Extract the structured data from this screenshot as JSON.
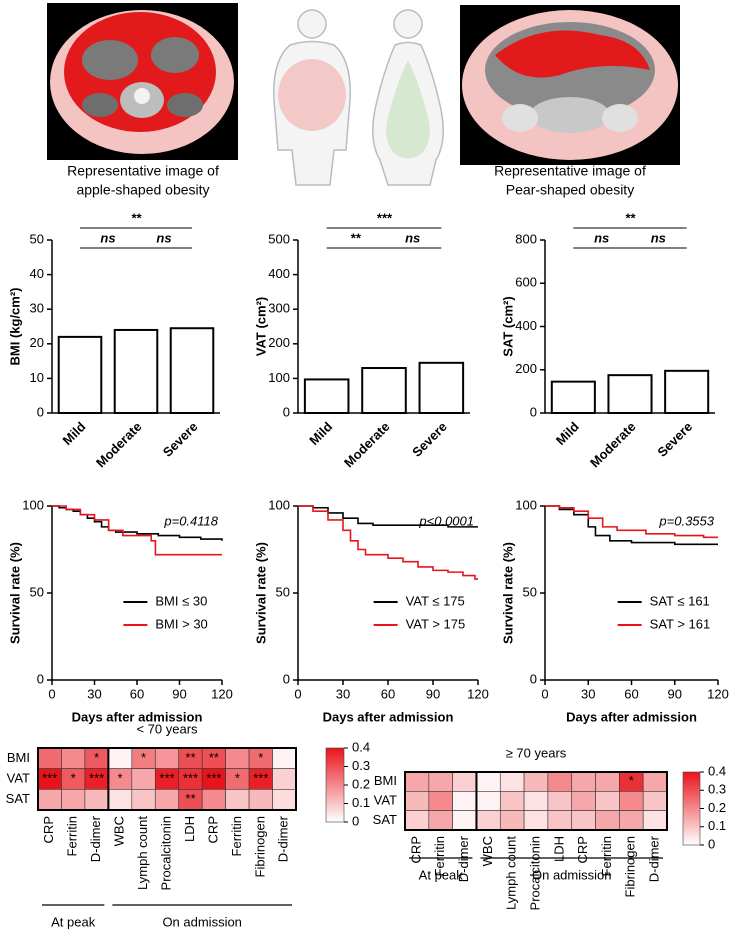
{
  "figure_images": {
    "captions": [
      [
        "Representative image of",
        "apple-shaped obesity"
      ],
      [
        "Representative image of",
        "Pear-shaped obesity"
      ]
    ]
  },
  "chart_data": [
    {
      "type": "bar",
      "ylabel": "BMI (kg/cm²)",
      "categories": [
        "Mild",
        "Moderate",
        "Severe"
      ],
      "values": [
        22,
        24,
        24.5
      ],
      "color": "#ffffff",
      "ylim": [
        0,
        50
      ],
      "yticks": [
        0,
        10,
        20,
        30,
        40,
        50
      ],
      "annotations": [
        {
          "text": "**",
          "categories": [
            "Mild",
            "Severe"
          ]
        },
        {
          "text": "ns",
          "categories": [
            "Mild",
            "Moderate"
          ]
        },
        {
          "text": "ns",
          "categories": [
            "Moderate",
            "Severe"
          ]
        }
      ]
    },
    {
      "type": "bar",
      "ylabel": "VAT (cm²)",
      "categories": [
        "Mild",
        "Moderate",
        "Severe"
      ],
      "values": [
        97,
        130,
        145
      ],
      "color": "#ffffff",
      "ylim": [
        0,
        500
      ],
      "yticks": [
        0,
        100,
        200,
        300,
        400,
        500
      ],
      "annotations": [
        {
          "text": "***",
          "categories": [
            "Mild",
            "Severe"
          ]
        },
        {
          "text": "**",
          "categories": [
            "Mild",
            "Moderate"
          ]
        },
        {
          "text": "ns",
          "categories": [
            "Moderate",
            "Severe"
          ]
        }
      ]
    },
    {
      "type": "bar",
      "ylabel": "SAT (cm²)",
      "categories": [
        "Mild",
        "Moderate",
        "Severe"
      ],
      "values": [
        145,
        175,
        195
      ],
      "color": "#ffffff",
      "ylim": [
        0,
        800
      ],
      "yticks": [
        0,
        200,
        400,
        600,
        800
      ],
      "annotations": [
        {
          "text": "**",
          "categories": [
            "Mild",
            "Severe"
          ]
        },
        {
          "text": "ns",
          "categories": [
            "Mild",
            "Moderate"
          ]
        },
        {
          "text": "ns",
          "categories": [
            "Moderate",
            "Severe"
          ]
        }
      ]
    },
    {
      "type": "line",
      "step": true,
      "xlabel": "Days after admission",
      "ylabel": "Survival rate (%)",
      "annotation": "p=0.4118",
      "xlim": [
        0,
        120
      ],
      "xticks": [
        0,
        30,
        60,
        90,
        120
      ],
      "ylim": [
        0,
        100
      ],
      "yticks": [
        0,
        50,
        100
      ],
      "legend": "lower right",
      "series": [
        {
          "name": "BMI ≤ 30",
          "color": "#000000",
          "x": [
            0,
            5,
            10,
            15,
            20,
            25,
            30,
            35,
            40,
            45,
            60,
            75,
            90,
            105,
            120
          ],
          "values": [
            100,
            99,
            98,
            97,
            95,
            93,
            91,
            88,
            86,
            85,
            84,
            83,
            82,
            81,
            80
          ]
        },
        {
          "name": "BMI > 30",
          "color": "#e8141c",
          "x": [
            0,
            10,
            20,
            30,
            40,
            50,
            70,
            73,
            120
          ],
          "values": [
            100,
            98,
            95,
            92,
            86,
            83,
            80,
            72,
            72
          ]
        }
      ]
    },
    {
      "type": "line",
      "step": true,
      "xlabel": "Days after admission",
      "ylabel": "Survival rate (%)",
      "annotation": "p<0.0001",
      "xlim": [
        0,
        120
      ],
      "xticks": [
        0,
        30,
        60,
        90,
        120
      ],
      "ylim": [
        0,
        100
      ],
      "yticks": [
        0,
        50,
        100
      ],
      "legend": "lower right",
      "series": [
        {
          "name": "VAT ≤ 175",
          "color": "#000000",
          "x": [
            0,
            10,
            20,
            30,
            40,
            50,
            80,
            100,
            120
          ],
          "values": [
            100,
            99,
            96,
            93,
            90,
            89,
            89,
            88,
            88
          ]
        },
        {
          "name": "VAT > 175",
          "color": "#e8141c",
          "x": [
            0,
            10,
            20,
            30,
            35,
            40,
            45,
            60,
            70,
            80,
            90,
            100,
            110,
            118,
            120
          ],
          "values": [
            100,
            97,
            92,
            86,
            80,
            75,
            72,
            70,
            68,
            65,
            63,
            62,
            60,
            58,
            58
          ]
        }
      ]
    },
    {
      "type": "line",
      "step": true,
      "xlabel": "Days after admission",
      "ylabel": "Survival rate (%)",
      "annotation": "p=0.3553",
      "xlim": [
        0,
        120
      ],
      "xticks": [
        0,
        30,
        60,
        90,
        120
      ],
      "ylim": [
        0,
        100
      ],
      "yticks": [
        0,
        50,
        100
      ],
      "legend": "lower right",
      "series": [
        {
          "name": "SAT ≤ 161",
          "color": "#000000",
          "x": [
            0,
            10,
            20,
            30,
            35,
            45,
            60,
            90,
            120
          ],
          "values": [
            100,
            98,
            95,
            88,
            83,
            80,
            79,
            78,
            78
          ]
        },
        {
          "name": "SAT > 161",
          "color": "#e8141c",
          "x": [
            0,
            10,
            20,
            30,
            40,
            50,
            70,
            90,
            110,
            120
          ],
          "values": [
            100,
            99,
            97,
            93,
            88,
            86,
            84,
            83,
            82,
            82
          ]
        }
      ]
    },
    {
      "type": "heatmap",
      "title": "< 70 years",
      "rows": [
        "BMI",
        "VAT",
        "SAT"
      ],
      "columns": [
        "CRP",
        "Ferritin",
        "D-dimer",
        "WBC",
        "Lymph count",
        "Procalcitonin",
        "LDH",
        "CRP",
        "Ferritin",
        "Fibrinogen",
        "D-dimer"
      ],
      "column_groups": [
        {
          "label": "At peak",
          "columns": [
            "CRP",
            "Ferritin",
            "D-dimer"
          ]
        },
        {
          "label": "On admission",
          "columns": [
            "WBC",
            "Lymph count",
            "Procalcitonin",
            "LDH",
            "CRP",
            "Ferritin",
            "Fibrinogen",
            "D-dimer"
          ]
        }
      ],
      "values": [
        [
          0.25,
          0.2,
          0.28,
          0.02,
          0.22,
          0.18,
          0.3,
          0.3,
          0.2,
          0.25,
          0.02
        ],
        [
          0.4,
          0.28,
          0.38,
          0.2,
          0.15,
          0.38,
          0.35,
          0.4,
          0.25,
          0.38,
          0.08
        ],
        [
          0.15,
          0.15,
          0.12,
          0.05,
          0.1,
          0.15,
          0.3,
          0.2,
          0.1,
          0.12,
          0.06
        ]
      ],
      "cell_labels": [
        [
          null,
          null,
          "*",
          null,
          "*",
          null,
          "**",
          "**",
          null,
          "*",
          null
        ],
        [
          "***",
          "*",
          "***",
          "*",
          null,
          "***",
          "***",
          "***",
          "*",
          "***",
          null
        ],
        [
          null,
          null,
          null,
          null,
          null,
          null,
          "**",
          null,
          null,
          null,
          null
        ]
      ],
      "colors": [
        "#ffffff",
        "#e8141c"
      ],
      "zlim": [
        0,
        0.4
      ],
      "zticks": [
        0,
        0.1,
        0.2,
        0.3,
        0.4
      ]
    },
    {
      "type": "heatmap",
      "title": "≥ 70 years",
      "rows": [
        "BMI",
        "VAT",
        "SAT"
      ],
      "columns": [
        "CRP",
        "Ferritin",
        "D-dimer",
        "WBC",
        "Lymph count",
        "Procalcitonin",
        "LDH",
        "CRP",
        "Ferritin",
        "Fibrinogen",
        "D-dimer"
      ],
      "column_groups": [
        {
          "label": "At peak",
          "columns": [
            "CRP",
            "Ferritin",
            "D-dimer"
          ]
        },
        {
          "label": "On admission",
          "columns": [
            "WBC",
            "Lymph count",
            "Procalcitonin",
            "LDH",
            "CRP",
            "Ferritin",
            "Fibrinogen",
            "D-dimer"
          ]
        }
      ],
      "values": [
        [
          0.15,
          0.15,
          0.08,
          0.02,
          0.05,
          0.12,
          0.2,
          0.15,
          0.15,
          0.35,
          0.15
        ],
        [
          0.12,
          0.2,
          0.02,
          0.02,
          0.1,
          0.05,
          0.1,
          0.15,
          0.1,
          0.2,
          0.1
        ],
        [
          0.08,
          0.15,
          0.02,
          0.08,
          0.12,
          0.05,
          0.1,
          0.1,
          0.15,
          0.15,
          0.05
        ]
      ],
      "cell_labels": [
        [
          null,
          null,
          null,
          null,
          null,
          null,
          null,
          null,
          null,
          "*",
          null
        ],
        [
          null,
          null,
          null,
          null,
          null,
          null,
          null,
          null,
          null,
          null,
          null
        ],
        [
          null,
          null,
          null,
          null,
          null,
          null,
          null,
          null,
          null,
          null,
          null
        ]
      ],
      "colors": [
        "#ffffff",
        "#e8141c"
      ],
      "zlim": [
        0,
        0.4
      ],
      "zticks": [
        0,
        0.1,
        0.2,
        0.3,
        0.4
      ]
    }
  ]
}
